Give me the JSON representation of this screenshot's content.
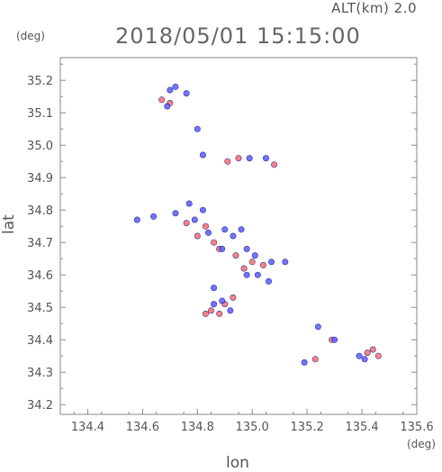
{
  "header": {
    "alt_label": "ALT(km) 2.0",
    "time_label": "2018/05/01 15:15:00"
  },
  "chart_data": {
    "type": "scatter",
    "title": "2018/05/01 15:15:00",
    "subtitle": "ALT(km) 2.0",
    "xlabel": "lon",
    "ylabel": "lat",
    "x_unit": "(deg)",
    "y_unit": "(deg)",
    "xlim": [
      134.3,
      135.6
    ],
    "ylim": [
      34.17,
      35.27
    ],
    "x_ticks": [
      "134.4",
      "134.6",
      "134.8",
      "135.0",
      "135.2",
      "135.4",
      "135.6"
    ],
    "y_ticks": [
      "34.2",
      "34.3",
      "34.4",
      "34.5",
      "34.6",
      "34.7",
      "34.8",
      "34.9",
      "35.0",
      "35.1",
      "35.2"
    ],
    "grid": false,
    "colors": {
      "positive": "#ff6b6b",
      "negative": "#5a5aff",
      "outline": "#333399",
      "axis": "#888888"
    },
    "series": [
      {
        "color": "#ff6b6b",
        "points": [
          [
            134.67,
            35.14
          ],
          [
            134.7,
            35.13
          ],
          [
            134.83,
            34.48
          ],
          [
            134.85,
            34.49
          ],
          [
            134.88,
            34.48
          ],
          [
            134.91,
            34.95
          ],
          [
            134.95,
            34.96
          ],
          [
            135.08,
            34.94
          ],
          [
            134.76,
            34.76
          ],
          [
            134.8,
            34.72
          ],
          [
            134.83,
            34.75
          ],
          [
            134.86,
            34.7
          ],
          [
            134.88,
            34.68
          ],
          [
            134.94,
            34.66
          ],
          [
            134.97,
            34.62
          ],
          [
            135.0,
            34.64
          ],
          [
            135.04,
            34.63
          ],
          [
            134.9,
            34.51
          ],
          [
            134.93,
            34.53
          ],
          [
            135.23,
            34.34
          ],
          [
            135.29,
            34.4
          ],
          [
            135.42,
            34.36
          ],
          [
            135.44,
            34.37
          ],
          [
            135.46,
            34.35
          ]
        ]
      },
      {
        "color": "#5a5aff",
        "points": [
          [
            134.7,
            35.17
          ],
          [
            134.72,
            35.18
          ],
          [
            134.69,
            35.12
          ],
          [
            134.76,
            35.16
          ],
          [
            134.8,
            35.05
          ],
          [
            134.82,
            34.97
          ],
          [
            134.99,
            34.96
          ],
          [
            135.05,
            34.96
          ],
          [
            134.58,
            34.77
          ],
          [
            134.64,
            34.78
          ],
          [
            134.72,
            34.79
          ],
          [
            134.77,
            34.82
          ],
          [
            134.79,
            34.77
          ],
          [
            134.82,
            34.8
          ],
          [
            134.84,
            34.73
          ],
          [
            134.9,
            34.74
          ],
          [
            134.93,
            34.72
          ],
          [
            134.96,
            34.74
          ],
          [
            134.89,
            34.68
          ],
          [
            134.98,
            34.68
          ],
          [
            135.01,
            34.66
          ],
          [
            134.98,
            34.6
          ],
          [
            135.02,
            34.6
          ],
          [
            135.07,
            34.64
          ],
          [
            135.12,
            34.64
          ],
          [
            135.06,
            34.58
          ],
          [
            134.86,
            34.51
          ],
          [
            134.89,
            34.52
          ],
          [
            134.92,
            34.49
          ],
          [
            134.86,
            34.56
          ],
          [
            135.24,
            34.44
          ],
          [
            135.3,
            34.4
          ],
          [
            135.19,
            34.33
          ],
          [
            135.39,
            34.35
          ],
          [
            135.41,
            34.34
          ]
        ]
      }
    ]
  }
}
